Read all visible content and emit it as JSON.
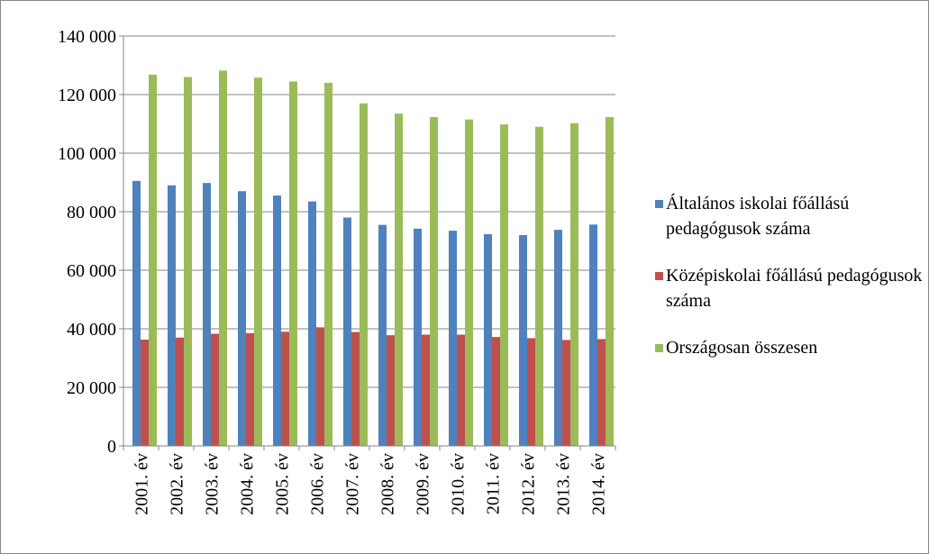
{
  "chart_data": {
    "type": "bar",
    "categories": [
      "2001. év",
      "2002. év",
      "2003. év",
      "2004. év",
      "2005. év",
      "2006. év",
      "2007. év",
      "2008. év",
      "2009. év",
      "2010. év",
      "2011. év",
      "2012. év",
      "2013. év",
      "2014. év"
    ],
    "series": [
      {
        "name": "Általános iskolai főállású pedagógusok száma",
        "color": "#4f81bd",
        "values": [
          90500,
          89000,
          89800,
          87000,
          85500,
          83500,
          78000,
          75500,
          74200,
          73500,
          72300,
          72000,
          73800,
          75600
        ]
      },
      {
        "name": "Középiskolai főállású pedagógusok száma",
        "color": "#c0504d",
        "values": [
          36300,
          37000,
          38300,
          38500,
          39000,
          40500,
          38900,
          37800,
          38000,
          38000,
          37200,
          36800,
          36200,
          36500
        ]
      },
      {
        "name": "Országosan összesen",
        "color": "#9bbb59",
        "values": [
          126800,
          126000,
          128200,
          125800,
          124500,
          124000,
          117000,
          113500,
          112300,
          111500,
          109800,
          109000,
          110200,
          112300
        ]
      }
    ],
    "ylim": [
      0,
      140000
    ],
    "yticks": [
      0,
      {
        "value": 20000,
        "label": "20 000"
      },
      {
        "value": 40000,
        "label": "40 000"
      },
      {
        "value": 60000,
        "label": "60 000"
      },
      {
        "value": 80000,
        "label": "80 000"
      },
      {
        "value": 100000,
        "label": "100 000"
      },
      {
        "value": 120000,
        "label": "120 000"
      },
      {
        "value": 140000,
        "label": "140 000"
      }
    ],
    "grid": true,
    "legend": "right"
  }
}
